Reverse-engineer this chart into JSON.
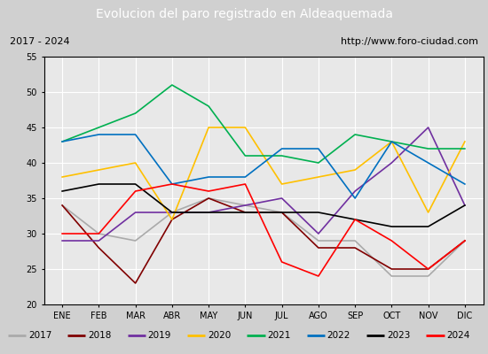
{
  "title": "Evolucion del paro registrado en Aldeaquemada",
  "subtitle_left": "2017 - 2024",
  "subtitle_right": "http://www.foro-ciudad.com",
  "title_bg": "#4472c4",
  "title_color": "white",
  "months": [
    "ENE",
    "FEB",
    "MAR",
    "ABR",
    "MAY",
    "JUN",
    "JUL",
    "AGO",
    "SEP",
    "OCT",
    "NOV",
    "DIC"
  ],
  "ylim": [
    20,
    55
  ],
  "yticks": [
    20,
    25,
    30,
    35,
    40,
    45,
    50,
    55
  ],
  "series": {
    "2017": {
      "color": "#aaaaaa",
      "data": [
        34,
        30,
        29,
        33,
        35,
        34,
        33,
        29,
        29,
        24,
        24,
        29
      ]
    },
    "2018": {
      "color": "#800000",
      "data": [
        34,
        28,
        23,
        32,
        35,
        33,
        33,
        28,
        28,
        25,
        25,
        29
      ]
    },
    "2019": {
      "color": "#7030a0",
      "data": [
        29,
        29,
        33,
        33,
        33,
        34,
        35,
        30,
        36,
        40,
        45,
        34
      ]
    },
    "2020": {
      "color": "#ffc000",
      "data": [
        38,
        39,
        40,
        32,
        45,
        45,
        37,
        38,
        39,
        43,
        33,
        43
      ]
    },
    "2021": {
      "color": "#00b050",
      "data": [
        43,
        45,
        47,
        51,
        48,
        41,
        41,
        40,
        44,
        43,
        42,
        42
      ]
    },
    "2022": {
      "color": "#0070c0",
      "data": [
        43,
        44,
        44,
        37,
        38,
        38,
        42,
        42,
        35,
        43,
        40,
        37
      ]
    },
    "2023": {
      "color": "#000000",
      "data": [
        36,
        37,
        37,
        33,
        33,
        33,
        33,
        33,
        32,
        31,
        31,
        34
      ]
    },
    "2024": {
      "color": "#ff0000",
      "data": [
        30,
        30,
        36,
        37,
        36,
        37,
        26,
        24,
        32,
        29,
        25,
        29
      ]
    }
  },
  "bg_color": "#e8e8e8",
  "plot_bg": "#e8e8e8"
}
